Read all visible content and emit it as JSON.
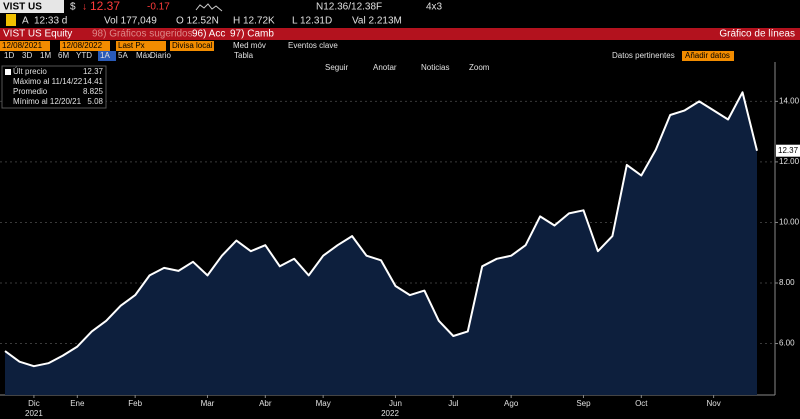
{
  "header": {
    "row1": {
      "ticker": "VIST US",
      "currency": "$",
      "arrow": "↓",
      "last": "12.37",
      "change": "-0.17",
      "bidask": "N12.36/12.38F",
      "size": "4x3"
    },
    "row2": {
      "a": "A",
      "time": "12:33 d",
      "vol": "Vol 177,049",
      "open": "O 12.52N",
      "high": "H 12.72K",
      "low": "L 12.31D",
      "val": "Val 2.213M"
    },
    "row3": {
      "security": "VIST US Equity",
      "suggested": "98) Gráficos sugeridos",
      "actions": "96) Acc",
      "change": "97) Camb",
      "title": "Gráfico de líneas"
    },
    "row4": {
      "start": "12/08/2021",
      "end": "12/08/2022",
      "field": "Last Px",
      "currency": "Divisa local",
      "ma": "Med móv",
      "events": "Eventos clave"
    },
    "row5": {
      "periods": [
        "1D",
        "3D",
        "1M",
        "6M",
        "YTD",
        "1A",
        "5A",
        "Máx"
      ],
      "frequency": "Diario",
      "table": "Tabla",
      "relevant": "Datos pertinentes",
      "add": "Añadir datos"
    },
    "tools": [
      "Seguir",
      "Anotar",
      "Noticias",
      "Zoom"
    ]
  },
  "chart_data": {
    "type": "area",
    "legend_stats": [
      {
        "label": "Últ precio",
        "value": "12.37"
      },
      {
        "label": "Máximo al 11/14/22",
        "value": "14.41"
      },
      {
        "label": "Promedio",
        "value": "8.825"
      },
      {
        "label": "Mínimo al 12/20/21",
        "value": "5.08"
      }
    ],
    "categories": [
      null,
      null,
      "Dic",
      null,
      null,
      "Ene",
      null,
      null,
      null,
      "Feb",
      null,
      null,
      null,
      null,
      "Mar",
      null,
      null,
      null,
      "Abr",
      null,
      null,
      null,
      "May",
      null,
      null,
      null,
      null,
      "Jun",
      null,
      null,
      null,
      "Jul",
      null,
      null,
      null,
      "Ago",
      null,
      null,
      null,
      null,
      "Sep",
      null,
      null,
      null,
      "Oct",
      null,
      null,
      null,
      null,
      "Nov",
      null,
      null,
      null
    ],
    "years": [
      "2021",
      "2022"
    ],
    "series": [
      {
        "name": "Últ precio",
        "color": "#ffffff",
        "fill": "#0d1f3d",
        "values": [
          5.75,
          5.4,
          5.25,
          5.35,
          5.6,
          5.9,
          6.4,
          6.75,
          7.25,
          7.6,
          8.25,
          8.5,
          8.4,
          8.7,
          8.25,
          8.9,
          9.4,
          9.05,
          9.25,
          8.55,
          8.8,
          8.25,
          8.9,
          9.25,
          9.55,
          8.9,
          8.75,
          7.9,
          7.6,
          7.75,
          6.75,
          6.25,
          6.4,
          8.55,
          8.8,
          8.9,
          9.25,
          10.2,
          9.9,
          10.3,
          10.4,
          9.05,
          9.55,
          11.9,
          11.55,
          12.4,
          13.55,
          13.7,
          14.0,
          13.7,
          13.4,
          14.3,
          12.37
        ]
      }
    ],
    "ylim": [
      4.3,
      15.3
    ],
    "yticks": [
      {
        "value": 6,
        "label": "6.00"
      },
      {
        "value": 8,
        "label": "8.00"
      },
      {
        "value": 10,
        "label": "10.00"
      },
      {
        "value": 12,
        "label": "12.00"
      },
      {
        "value": 14,
        "label": "14.00"
      }
    ],
    "grid": true
  }
}
